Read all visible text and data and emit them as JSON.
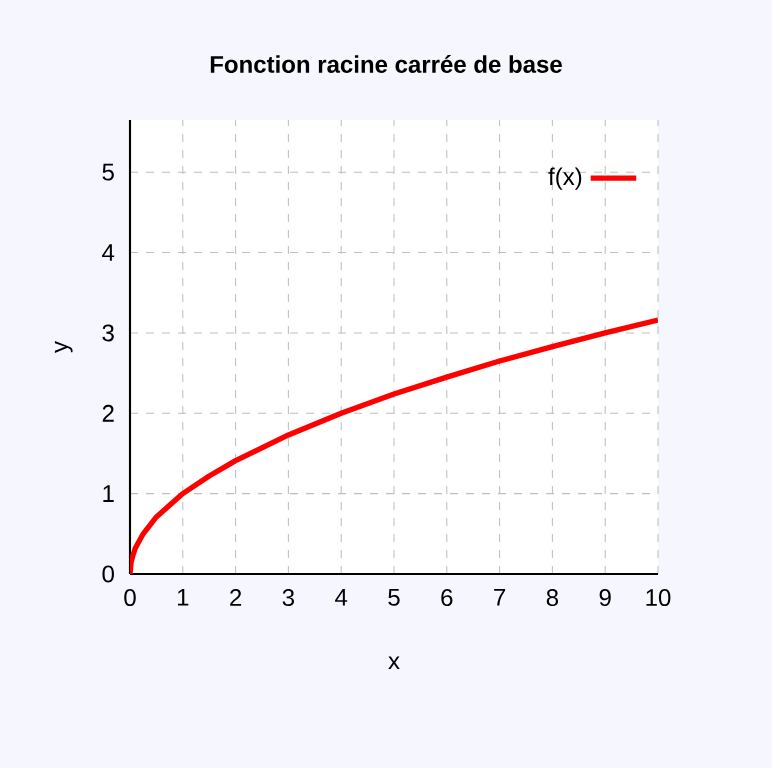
{
  "chart_data": {
    "type": "line",
    "title": "Fonction racine carrée  de base",
    "xlabel": "x",
    "ylabel": "y",
    "x": [
      0,
      0.02,
      0.05,
      0.1,
      0.25,
      0.5,
      1,
      1.5,
      2,
      3,
      4,
      5,
      6,
      7,
      8,
      9,
      10
    ],
    "series": [
      {
        "name": "f(x)",
        "color": "#ff0000",
        "values": [
          0,
          0.14,
          0.22,
          0.32,
          0.5,
          0.71,
          1,
          1.22,
          1.41,
          1.73,
          2,
          2.24,
          2.45,
          2.65,
          2.83,
          3,
          3.16
        ]
      }
    ],
    "xlim": [
      0,
      10
    ],
    "ylim": [
      0,
      5.65
    ],
    "xticks": [
      0,
      1,
      2,
      3,
      4,
      5,
      6,
      7,
      8,
      9,
      10
    ],
    "yticks": [
      0,
      1,
      2,
      3,
      4,
      5
    ],
    "grid": true,
    "legend": "top right",
    "marker": "none",
    "line_style": "solid"
  }
}
